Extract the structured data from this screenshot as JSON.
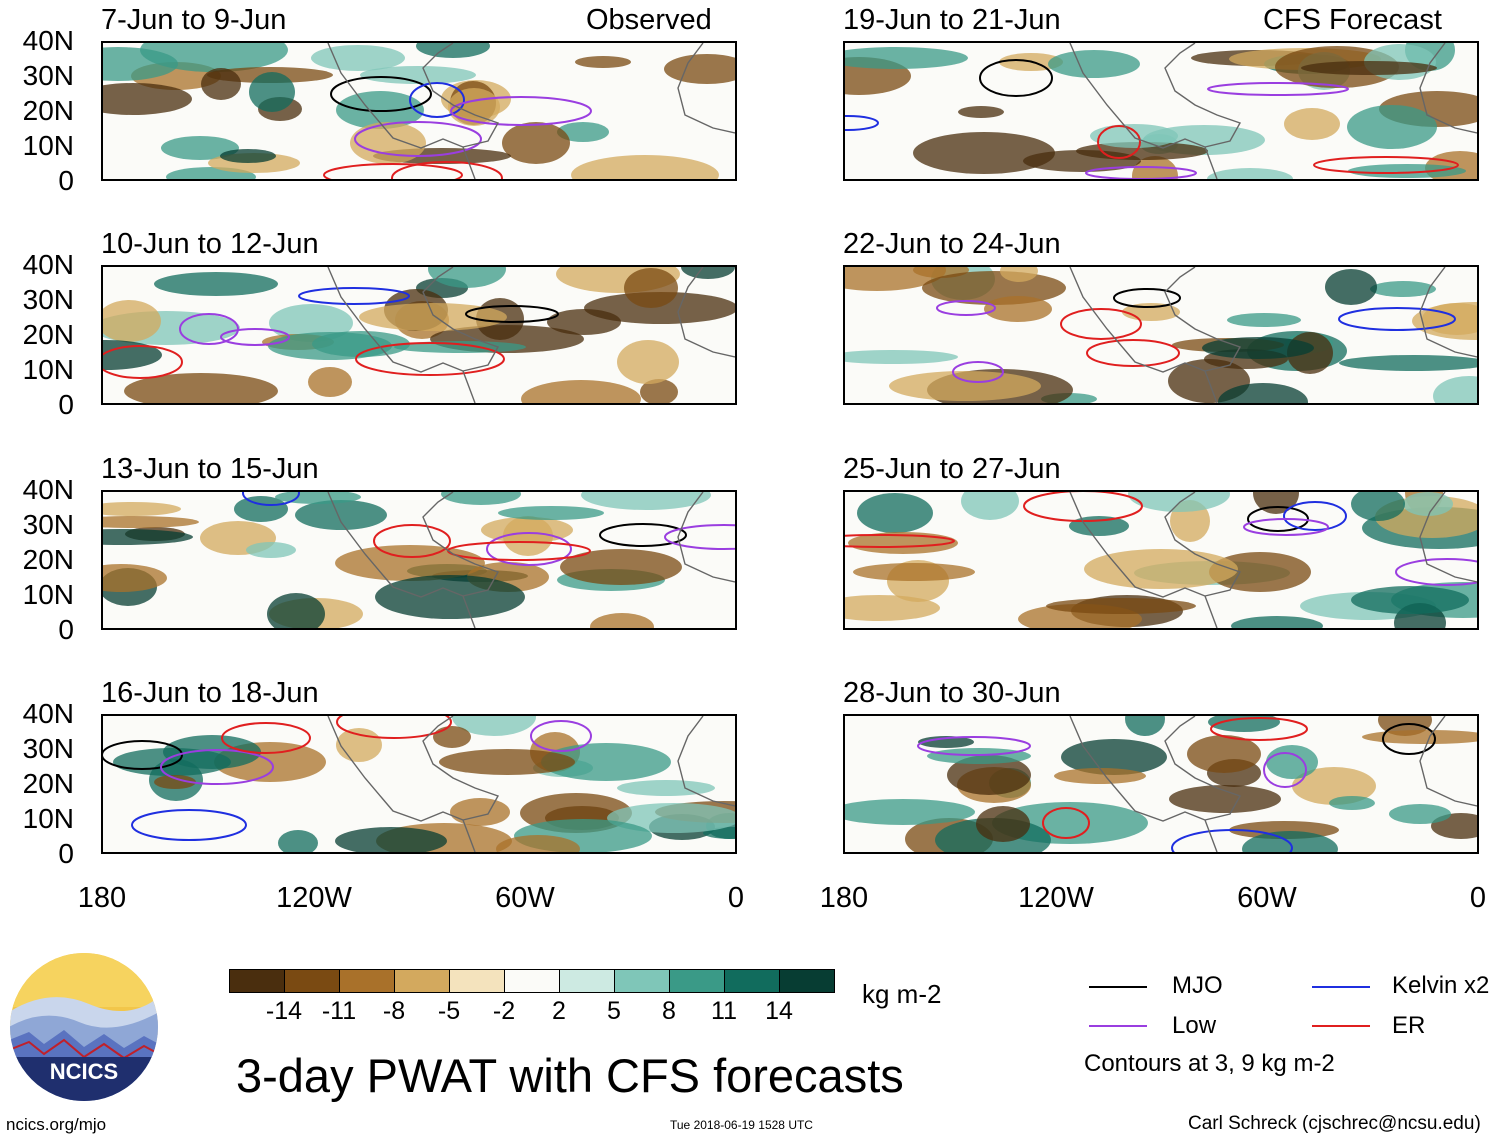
{
  "title": "3-day PWAT with CFS forecasts",
  "observed_label": "Observed",
  "forecast_label": "CFS Forecast",
  "panels": [
    {
      "label": "7-Jun to 9-Jun"
    },
    {
      "label": "10-Jun to 12-Jun"
    },
    {
      "label": "13-Jun to 15-Jun"
    },
    {
      "label": "16-Jun to 18-Jun"
    },
    {
      "label": "19-Jun to 21-Jun"
    },
    {
      "label": "22-Jun to 24-Jun"
    },
    {
      "label": "25-Jun to 27-Jun"
    },
    {
      "label": "28-Jun to 30-Jun"
    }
  ],
  "axes": {
    "y_ticks": [
      "40N",
      "30N",
      "20N",
      "10N",
      "0"
    ],
    "x_ticks": [
      "180",
      "120W",
      "60W",
      "0"
    ]
  },
  "colorbar": {
    "labels": [
      "-14",
      "-11",
      "-8",
      "-5",
      "-2",
      "2",
      "5",
      "8",
      "11",
      "14"
    ],
    "colors": [
      "#4a2e0e",
      "#7a4a12",
      "#a9712a",
      "#d3a95e",
      "#f4e3bd",
      "#fbfbf8",
      "#cdeae2",
      "#7fc6b8",
      "#3a9a87",
      "#116c5d",
      "#073d33"
    ],
    "units": "kg m-2"
  },
  "legend": {
    "items": [
      {
        "label": "MJO",
        "color": "#000000"
      },
      {
        "label": "Kelvin x2",
        "color": "#1f2fe0"
      },
      {
        "label": "Low",
        "color": "#9a3ee0"
      },
      {
        "label": "ER",
        "color": "#e01f1f"
      }
    ],
    "note": "Contours at 3, 9 kg m-2"
  },
  "logo_text": "NCICS",
  "footer": {
    "url": "ncics.org/mjo",
    "timestamp": "Tue 2018-06-19 1528 UTC",
    "author": "Carl Schreck (cjschrec@ncsu.edu)"
  }
}
